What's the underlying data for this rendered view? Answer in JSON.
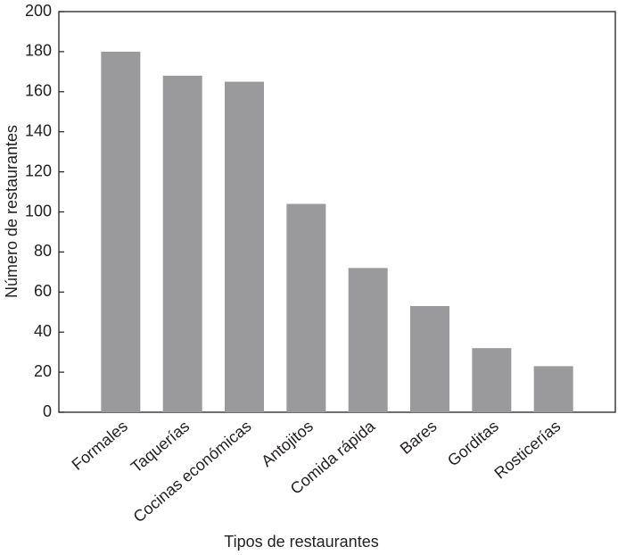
{
  "chart_data": {
    "type": "bar",
    "x_label": "Tipos de restaurantes",
    "y_label": "Número de restaurantes",
    "categories": [
      "Formales",
      "Taquerías",
      "Cocinas económicas",
      "Antojitos",
      "Comida rápida",
      "Bares",
      "Gorditas",
      "Rosticerías"
    ],
    "values": [
      180,
      168,
      165,
      104,
      72,
      53,
      32,
      23
    ],
    "color": "#9a9a9c",
    "ylim": [
      0,
      200
    ],
    "yticks": [
      0,
      20,
      40,
      60,
      80,
      100,
      120,
      140,
      160,
      180,
      200
    ],
    "grid": false
  }
}
